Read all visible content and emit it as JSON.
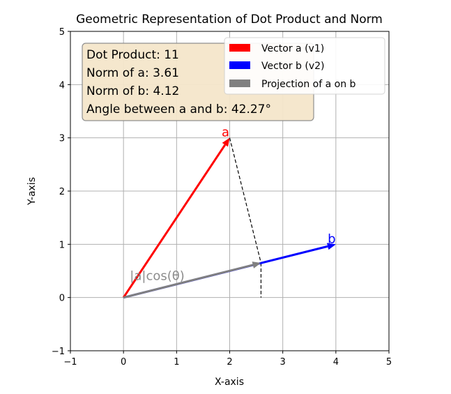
{
  "chart_data": {
    "type": "vector-plot",
    "title": "Geometric Representation of Dot Product and Norm",
    "xlabel": "X-axis",
    "ylabel": "Y-axis",
    "xlim": [
      -1,
      5
    ],
    "ylim": [
      -1,
      5
    ],
    "xticks": [
      -1,
      0,
      1,
      2,
      3,
      4,
      5
    ],
    "yticks": [
      -1,
      0,
      1,
      2,
      3,
      4,
      5
    ],
    "xtick_labels": [
      "−1",
      "0",
      "1",
      "2",
      "3",
      "4",
      "5"
    ],
    "ytick_labels": [
      "−1",
      "0",
      "1",
      "2",
      "3",
      "4",
      "5"
    ],
    "grid": true,
    "legend_position": "top-right",
    "vectors": [
      {
        "name": "Vector a (v1)",
        "label": "a",
        "from": [
          0,
          0
        ],
        "to": [
          2,
          3
        ],
        "color": "#ff0000"
      },
      {
        "name": "Vector b (v2)",
        "label": "b",
        "from": [
          0,
          0
        ],
        "to": [
          4,
          1
        ],
        "color": "#0000ff"
      },
      {
        "name": "Projection of a on b",
        "from": [
          0,
          0
        ],
        "to": [
          2.59,
          0.65
        ],
        "color": "#808080"
      }
    ],
    "dashed_lines": [
      {
        "from": [
          2,
          3
        ],
        "to": [
          2.59,
          0.65
        ]
      },
      {
        "from": [
          2.59,
          0.65
        ],
        "to": [
          2.59,
          0
        ]
      }
    ],
    "projection_annotation": "|a|cos(θ)",
    "info_box": [
      "Dot Product: 11",
      "Norm of a: 3.61",
      "Norm of b: 4.12",
      "Angle between a and b: 42.27°"
    ]
  }
}
